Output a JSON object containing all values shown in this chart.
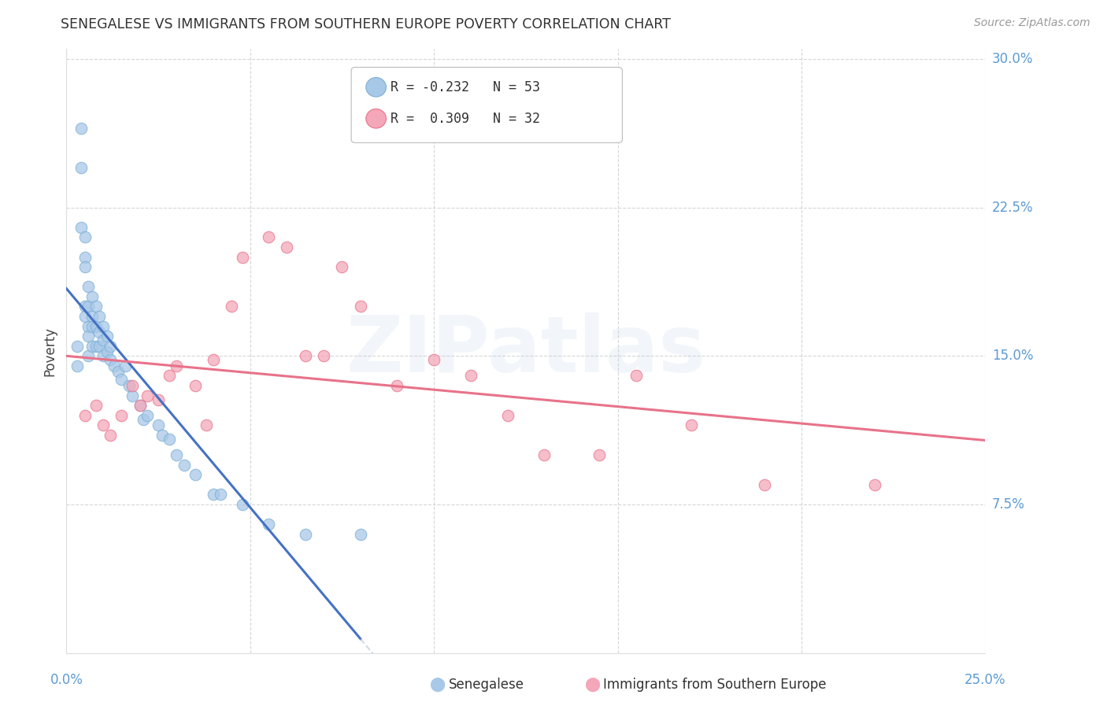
{
  "title": "SENEGALESE VS IMMIGRANTS FROM SOUTHERN EUROPE POVERTY CORRELATION CHART",
  "source": "Source: ZipAtlas.com",
  "ylabel": "Poverty",
  "xlim": [
    0.0,
    0.25
  ],
  "ylim": [
    0.0,
    0.305
  ],
  "yticks": [
    0.075,
    0.15,
    0.225,
    0.3
  ],
  "ytick_labels": [
    "7.5%",
    "15.0%",
    "22.5%",
    "30.0%"
  ],
  "xticks": [
    0.0,
    0.05,
    0.1,
    0.15,
    0.2,
    0.25
  ],
  "background_color": "#ffffff",
  "grid_color": "#cccccc",
  "watermark": "ZIPatlas",
  "series": [
    {
      "name": "Senegalese",
      "R": -0.232,
      "N": 53,
      "color": "#a8c8e8",
      "edge_color": "#7bafd4",
      "line_color": "#4472c4",
      "x": [
        0.003,
        0.003,
        0.004,
        0.004,
        0.004,
        0.005,
        0.005,
        0.005,
        0.005,
        0.005,
        0.006,
        0.006,
        0.006,
        0.006,
        0.006,
        0.007,
        0.007,
        0.007,
        0.007,
        0.008,
        0.008,
        0.008,
        0.009,
        0.009,
        0.009,
        0.01,
        0.01,
        0.01,
        0.011,
        0.011,
        0.012,
        0.012,
        0.013,
        0.014,
        0.015,
        0.016,
        0.017,
        0.018,
        0.02,
        0.021,
        0.022,
        0.025,
        0.026,
        0.028,
        0.03,
        0.032,
        0.035,
        0.04,
        0.042,
        0.048,
        0.055,
        0.065,
        0.08
      ],
      "y": [
        0.155,
        0.145,
        0.265,
        0.245,
        0.215,
        0.21,
        0.2,
        0.195,
        0.175,
        0.17,
        0.185,
        0.175,
        0.165,
        0.16,
        0.15,
        0.18,
        0.17,
        0.165,
        0.155,
        0.175,
        0.165,
        0.155,
        0.17,
        0.162,
        0.155,
        0.165,
        0.158,
        0.15,
        0.16,
        0.152,
        0.155,
        0.148,
        0.145,
        0.142,
        0.138,
        0.145,
        0.135,
        0.13,
        0.125,
        0.118,
        0.12,
        0.115,
        0.11,
        0.108,
        0.1,
        0.095,
        0.09,
        0.08,
        0.08,
        0.075,
        0.065,
        0.06,
        0.06
      ]
    },
    {
      "name": "Immigrants from Southern Europe",
      "R": 0.309,
      "N": 32,
      "color": "#f4a7b9",
      "edge_color": "#e8728a",
      "line_color": "#e8728a",
      "x": [
        0.005,
        0.008,
        0.01,
        0.012,
        0.015,
        0.018,
        0.02,
        0.022,
        0.025,
        0.028,
        0.03,
        0.035,
        0.038,
        0.04,
        0.045,
        0.048,
        0.055,
        0.06,
        0.065,
        0.07,
        0.075,
        0.08,
        0.09,
        0.1,
        0.11,
        0.12,
        0.13,
        0.145,
        0.155,
        0.17,
        0.19,
        0.22
      ],
      "y": [
        0.12,
        0.125,
        0.115,
        0.11,
        0.12,
        0.135,
        0.125,
        0.13,
        0.128,
        0.14,
        0.145,
        0.135,
        0.115,
        0.148,
        0.175,
        0.2,
        0.21,
        0.205,
        0.15,
        0.15,
        0.195,
        0.175,
        0.135,
        0.148,
        0.14,
        0.12,
        0.1,
        0.1,
        0.14,
        0.115,
        0.085,
        0.085
      ]
    }
  ]
}
